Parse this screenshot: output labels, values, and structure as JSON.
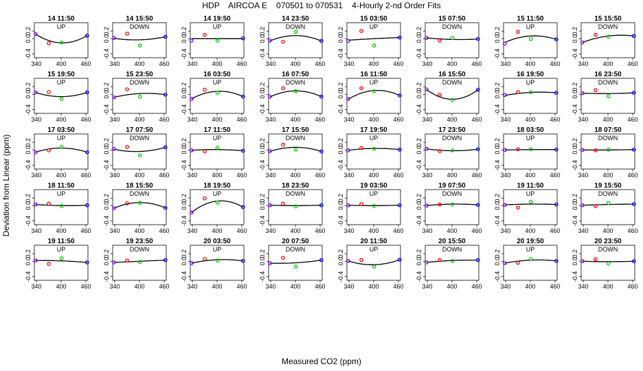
{
  "header": {
    "title": "HDP    AIRCOA E    070501 to 070531    4-Hourly 2-nd Order Fits"
  },
  "axes": {
    "xlabel": "Measured CO2 (ppm)",
    "ylabel": "Deviation from Linear (ppm)"
  },
  "colors": {
    "line": "#000000",
    "point_low": "#8000ff",
    "point_mid": "#ff0000",
    "point_high": "#00cc00",
    "point_top": "#0000ff"
  },
  "chart_data": {
    "type": "scatter",
    "layout": "grid of 40 panels, 5 rows x 8 columns",
    "xlim": [
      335,
      465
    ],
    "ylim": [
      -0.5,
      0.42
    ],
    "x_ticks": [
      "340",
      "400",
      "460"
    ],
    "y_ticks": [
      "-0.4",
      "0.0",
      "0.2"
    ],
    "x_tick_values": [
      340,
      400,
      460
    ],
    "y_tick_values": [
      -0.4,
      0.0,
      0.2
    ],
    "grid": false,
    "point_x": [
      338,
      370,
      401,
      463
    ],
    "panels": [
      {
        "title": "14 11:50",
        "direction": "UP",
        "points": [
          0.12,
          -0.12,
          -0.1,
          0.08
        ],
        "curve": [
          0.12,
          -0.11,
          0.08
        ]
      },
      {
        "title": "14 15:50",
        "direction": "DOWN",
        "points": [
          0.02,
          0.13,
          -0.18,
          0.05
        ],
        "curve": [
          0.01,
          -0.03,
          0.05
        ]
      },
      {
        "title": "14 19:50",
        "direction": "UP",
        "points": [
          -0.05,
          0.1,
          -0.05,
          0.01
        ],
        "curve": [
          0.0,
          0.0,
          0.0
        ]
      },
      {
        "title": "14 23:50",
        "direction": "DOWN",
        "points": [
          -0.05,
          -0.08,
          0.18,
          -0.06
        ],
        "curve": [
          -0.06,
          0.08,
          -0.06
        ]
      },
      {
        "title": "15 03:50",
        "direction": "UP",
        "points": [
          -0.06,
          0.2,
          -0.18,
          0.03
        ],
        "curve": [
          -0.04,
          0.0,
          0.03
        ]
      },
      {
        "title": "15 07:50",
        "direction": "DOWN",
        "points": [
          0.02,
          -0.05,
          0.02,
          -0.01
        ],
        "curve": [
          0.02,
          -0.02,
          -0.01
        ]
      },
      {
        "title": "15 11:50",
        "direction": "UP",
        "points": [
          -0.13,
          0.18,
          -0.01,
          -0.02
        ],
        "curve": [
          -0.1,
          0.07,
          -0.02
        ]
      },
      {
        "title": "15 15:50",
        "direction": "DOWN",
        "points": [
          -0.1,
          0.1,
          0.05,
          0.07
        ],
        "curve": [
          -0.1,
          0.07,
          0.07
        ]
      },
      {
        "title": "15 19:50",
        "direction": "UP",
        "points": [
          0.05,
          0.06,
          -0.12,
          0.05
        ],
        "curve": [
          0.05,
          -0.06,
          0.05
        ]
      },
      {
        "title": "15 23:50",
        "direction": "DOWN",
        "points": [
          -0.08,
          0.13,
          -0.06,
          -0.01
        ],
        "curve": [
          -0.08,
          0.02,
          -0.01
        ]
      },
      {
        "title": "16 03:50",
        "direction": "UP",
        "points": [
          -0.12,
          0.12,
          0.04,
          -0.06
        ],
        "curve": [
          -0.12,
          0.08,
          -0.06
        ]
      },
      {
        "title": "16 07:50",
        "direction": "DOWN",
        "points": [
          -0.06,
          0.16,
          0.08,
          -0.06
        ],
        "curve": [
          -0.07,
          0.09,
          -0.06
        ]
      },
      {
        "title": "16 11:50",
        "direction": "UP",
        "points": [
          -0.12,
          0.16,
          0.08,
          -0.03
        ],
        "curve": [
          -0.13,
          0.1,
          -0.03
        ]
      },
      {
        "title": "16 15:50",
        "direction": "DOWN",
        "points": [
          0.13,
          -0.01,
          -0.15,
          0.12
        ],
        "curve": [
          0.13,
          -0.13,
          0.12
        ]
      },
      {
        "title": "16 19:50",
        "direction": "UP",
        "points": [
          -0.02,
          0.06,
          0.05,
          0.04
        ],
        "curve": [
          -0.03,
          0.05,
          0.04
        ]
      },
      {
        "title": "16 23:50",
        "direction": "DOWN",
        "points": [
          0.03,
          0.11,
          -0.05,
          0.04
        ],
        "curve": [
          0.03,
          0.02,
          0.04
        ]
      },
      {
        "title": "17 03:50",
        "direction": "UP",
        "points": [
          -0.06,
          -0.01,
          0.08,
          -0.06
        ],
        "curve": [
          -0.06,
          0.05,
          -0.06
        ]
      },
      {
        "title": "17 07:50",
        "direction": "DOWN",
        "points": [
          0.03,
          0.08,
          -0.14,
          0.07
        ],
        "curve": [
          0.02,
          -0.04,
          0.07
        ]
      },
      {
        "title": "17 11:50",
        "direction": "UP",
        "points": [
          -0.01,
          -0.04,
          0.06,
          -0.02
        ],
        "curve": [
          -0.01,
          0.01,
          -0.02
        ]
      },
      {
        "title": "17 15:50",
        "direction": "DOWN",
        "points": [
          -0.03,
          0.14,
          0.01,
          -0.04
        ],
        "curve": [
          -0.04,
          0.07,
          -0.04
        ]
      },
      {
        "title": "17 19:50",
        "direction": "UP",
        "points": [
          -0.01,
          0.05,
          0.03,
          0.01
        ],
        "curve": [
          -0.01,
          0.04,
          0.01
        ]
      },
      {
        "title": "17 23:50",
        "direction": "DOWN",
        "points": [
          0.03,
          -0.03,
          -0.01,
          0.02
        ],
        "curve": [
          0.03,
          -0.02,
          0.02
        ]
      },
      {
        "title": "18 03:50",
        "direction": "UP",
        "points": [
          0.0,
          0.02,
          0.02,
          0.01
        ],
        "curve": [
          0.0,
          0.01,
          0.01
        ]
      },
      {
        "title": "18 07:50",
        "direction": "DOWN",
        "points": [
          0.0,
          -0.01,
          0.01,
          0.01
        ],
        "curve": [
          0.0,
          0.0,
          0.01
        ]
      },
      {
        "title": "18 11:50",
        "direction": "UP",
        "points": [
          0.03,
          0.05,
          -0.01,
          0.01
        ],
        "curve": [
          0.03,
          0.0,
          0.01
        ]
      },
      {
        "title": "18 15:50",
        "direction": "DOWN",
        "points": [
          -0.07,
          0.06,
          0.07,
          -0.06
        ],
        "curve": [
          -0.07,
          0.08,
          -0.06
        ]
      },
      {
        "title": "18 19:50",
        "direction": "UP",
        "points": [
          -0.18,
          0.19,
          0.08,
          -0.04
        ],
        "curve": [
          -0.18,
          0.12,
          -0.04
        ]
      },
      {
        "title": "18 23:50",
        "direction": "DOWN",
        "points": [
          0.01,
          0.05,
          -0.02,
          0.01
        ],
        "curve": [
          0.01,
          0.0,
          0.01
        ]
      },
      {
        "title": "19 03:50",
        "direction": "UP",
        "points": [
          0.01,
          0.04,
          -0.01,
          0.01
        ],
        "curve": [
          0.01,
          0.0,
          0.01
        ]
      },
      {
        "title": "19 07:50",
        "direction": "DOWN",
        "points": [
          0.0,
          0.03,
          0.03,
          0.02
        ],
        "curve": [
          0.0,
          0.04,
          0.02
        ]
      },
      {
        "title": "19 11:50",
        "direction": "UP",
        "points": [
          0.02,
          -0.05,
          0.1,
          0.03
        ],
        "curve": [
          0.02,
          0.04,
          0.03
        ]
      },
      {
        "title": "19 15:50",
        "direction": "DOWN",
        "points": [
          0.01,
          -0.01,
          0.07,
          0.04
        ],
        "curve": [
          0.01,
          0.03,
          0.04
        ]
      },
      {
        "title": "19 11:50",
        "direction": "UP",
        "points": [
          0.02,
          -0.07,
          0.08,
          -0.03
        ],
        "curve": [
          0.02,
          0.01,
          -0.03
        ]
      },
      {
        "title": "19 23:50",
        "direction": "DOWN",
        "points": [
          -0.03,
          0.02,
          -0.02,
          0.03
        ],
        "curve": [
          -0.03,
          0.0,
          0.03
        ]
      },
      {
        "title": "20 03:50",
        "direction": "UP",
        "points": [
          -0.05,
          0.06,
          0.02,
          0.01
        ],
        "curve": [
          -0.05,
          0.04,
          0.01
        ]
      },
      {
        "title": "20 07:50",
        "direction": "DOWN",
        "points": [
          -0.05,
          0.09,
          -0.14,
          0.03
        ],
        "curve": [
          -0.05,
          -0.04,
          0.03
        ]
      },
      {
        "title": "20 11:50",
        "direction": "UP",
        "points": [
          0.01,
          0.03,
          -0.14,
          0.04
        ],
        "curve": [
          0.01,
          -0.09,
          0.04
        ]
      },
      {
        "title": "20 15:50",
        "direction": "DOWN",
        "points": [
          -0.03,
          0.03,
          0.01,
          0.03
        ],
        "curve": [
          -0.03,
          0.02,
          0.03
        ]
      },
      {
        "title": "20 19:50",
        "direction": "UP",
        "points": [
          -0.05,
          -0.04,
          0.06,
          0.01
        ],
        "curve": [
          -0.05,
          0.03,
          0.01
        ]
      },
      {
        "title": "20 23:50",
        "direction": "DOWN",
        "points": [
          0.0,
          0.05,
          -0.06,
          0.0
        ],
        "curve": [
          0.0,
          -0.01,
          0.0
        ]
      }
    ]
  }
}
